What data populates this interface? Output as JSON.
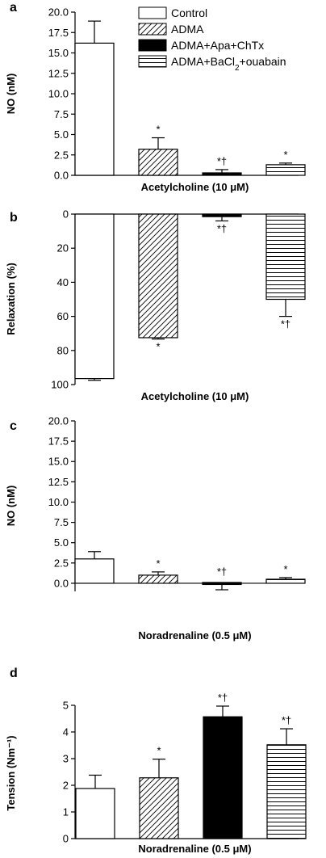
{
  "legend": [
    {
      "label": "Control",
      "pattern": "none"
    },
    {
      "label": "ADMA",
      "pattern": "diag"
    },
    {
      "label": "ADMA+Apa+ChTx",
      "pattern": "solid"
    },
    {
      "label": "ADMA+BaCl2+ouabain",
      "pattern": "horiz",
      "label_main": "ADMA+BaCl",
      "label_sub": "2",
      "label_tail": "+ouabain"
    }
  ],
  "chart_data": [
    {
      "panel": "a",
      "type": "bar",
      "categories": [
        "Control",
        "ADMA",
        "ADMA+Apa+ChTx",
        "ADMA+BaCl2+ouabain"
      ],
      "values": [
        16.2,
        3.2,
        0.2,
        1.3
      ],
      "errors": [
        2.7,
        1.4,
        0.5,
        0.2
      ],
      "significance": [
        "",
        "*",
        "*†",
        "*"
      ],
      "ylabel": "NO (nM)",
      "xlabel": "Acetylcholine (10 μM)",
      "ylim": [
        0,
        20
      ],
      "yticks": [
        "0.0",
        "2.5",
        "5.0",
        "7.5",
        "10.0",
        "12.5",
        "15.0",
        "17.5",
        "20.0"
      ],
      "inverted": false
    },
    {
      "panel": "b",
      "type": "bar",
      "categories": [
        "Control",
        "ADMA",
        "ADMA+Apa+ChTx",
        "ADMA+BaCl2+ouabain"
      ],
      "values": [
        96.5,
        72.5,
        1.5,
        50
      ],
      "errors": [
        1.0,
        0.8,
        2.5,
        10
      ],
      "significance": [
        "",
        "*",
        "*†",
        "*†"
      ],
      "ylabel": "Relaxation (%)",
      "xlabel": "Acetylcholine (10 μM)",
      "ylim": [
        0,
        100
      ],
      "yticks": [
        "0",
        "20",
        "40",
        "60",
        "80",
        "100"
      ],
      "inverted": true
    },
    {
      "panel": "c",
      "type": "bar",
      "categories": [
        "Control",
        "ADMA",
        "ADMA+Apa+ChTx",
        "ADMA+BaCl2+ouabain"
      ],
      "values": [
        3.0,
        1.0,
        -0.2,
        0.5
      ],
      "errors": [
        0.9,
        0.4,
        0.6,
        0.2
      ],
      "significance": [
        "",
        "*",
        "*†",
        "*"
      ],
      "ylabel": "NO (nM)",
      "xlabel": "Noradrenaline (0.5 μM)",
      "ylim": [
        -1,
        20
      ],
      "yticks": [
        "0.0",
        "2.5",
        "5.0",
        "7.5",
        "10.0",
        "12.5",
        "15.0",
        "17.5",
        "20.0"
      ],
      "inverted": false
    },
    {
      "panel": "d",
      "type": "bar",
      "categories": [
        "Control",
        "ADMA",
        "ADMA+Apa+ChTx",
        "ADMA+BaCl2+ouabain"
      ],
      "values": [
        1.88,
        2.28,
        4.57,
        3.52
      ],
      "errors": [
        0.5,
        0.7,
        0.4,
        0.6
      ],
      "significance": [
        "",
        "*",
        "*†",
        "*†"
      ],
      "ylabel": "Tension (Nm⁻¹)",
      "xlabel": "Noradrenaline (0.5 μM)",
      "ylim": [
        0,
        5
      ],
      "yticks": [
        "0",
        "1",
        "2",
        "3",
        "4",
        "5"
      ],
      "inverted": false
    }
  ]
}
